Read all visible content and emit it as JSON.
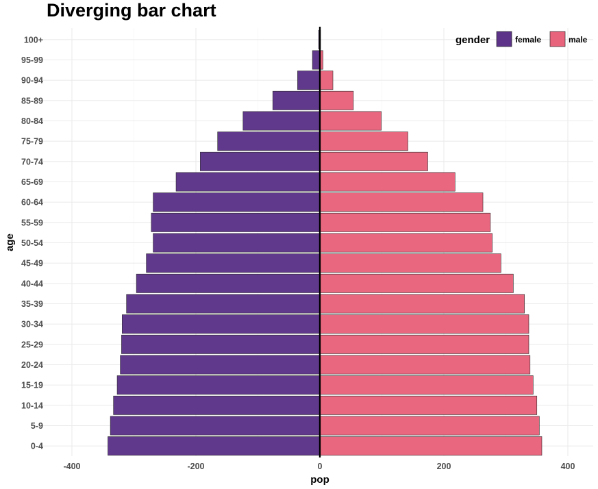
{
  "chart_data": {
    "type": "bar",
    "orientation": "horizontal",
    "title": "Diverging bar chart",
    "xlabel": "pop",
    "ylabel": "age",
    "xlim": [
      -440,
      440
    ],
    "xticks": [
      -400,
      -200,
      0,
      200,
      400
    ],
    "grid": true,
    "legend": {
      "title": "gender",
      "position": "top-right"
    },
    "categories": [
      "0-4",
      "5-9",
      "10-14",
      "15-19",
      "20-24",
      "25-29",
      "30-34",
      "35-39",
      "40-44",
      "45-49",
      "50-54",
      "55-59",
      "60-64",
      "65-69",
      "70-74",
      "75-79",
      "80-84",
      "85-89",
      "90-94",
      "95-99",
      "100+"
    ],
    "series": [
      {
        "name": "female",
        "color": "#5c3388",
        "values": [
          -342,
          -338,
          -333,
          -327,
          -322,
          -320,
          -319,
          -312,
          -296,
          -280,
          -269,
          -272,
          -269,
          -232,
          -193,
          -165,
          -124,
          -76,
          -36,
          -12,
          -2
        ]
      },
      {
        "name": "male",
        "color": "#e8637c",
        "values": [
          358,
          354,
          350,
          344,
          339,
          337,
          337,
          330,
          312,
          292,
          278,
          275,
          263,
          218,
          174,
          142,
          99,
          54,
          21,
          5,
          1
        ]
      }
    ]
  }
}
